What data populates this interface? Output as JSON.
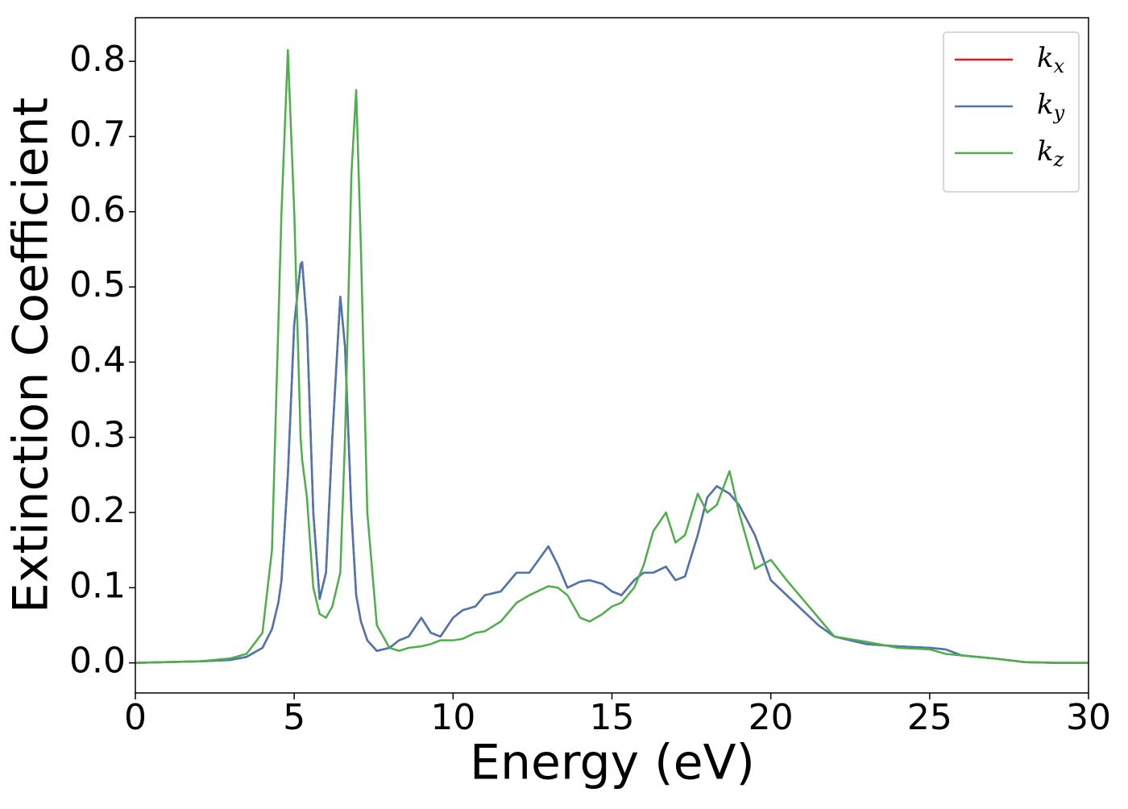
{
  "chart_data": {
    "type": "line",
    "xlabel": "Energy (eV)",
    "ylabel": "Extinction Coefficient",
    "x": [
      0,
      2,
      3,
      3.5,
      4,
      4.3,
      4.5,
      4.6,
      4.8,
      5.0,
      5.2,
      5.25,
      5.4,
      5.6,
      5.8,
      6.0,
      6.2,
      6.45,
      6.6,
      6.8,
      6.95,
      7.1,
      7.3,
      7.6,
      8,
      8.3,
      8.6,
      9,
      9.3,
      9.6,
      10,
      10.3,
      10.7,
      11,
      11.5,
      12,
      12.4,
      13,
      13.3,
      13.6,
      14,
      14.3,
      14.7,
      15,
      15.3,
      15.7,
      16,
      16.3,
      16.7,
      17,
      17.3,
      17.7,
      18,
      18.3,
      18.7,
      19,
      19.5,
      20,
      20.5,
      21,
      21.5,
      22,
      23,
      24,
      25,
      25.5,
      26,
      27,
      28,
      29,
      30
    ],
    "series": [
      {
        "name": "kx",
        "color": "#e41a1c",
        "values": [
          0,
          0.002,
          0.004,
          0.008,
          0.02,
          0.045,
          0.08,
          0.11,
          0.25,
          0.45,
          0.53,
          0.533,
          0.45,
          0.2,
          0.085,
          0.12,
          0.3,
          0.487,
          0.42,
          0.2,
          0.09,
          0.055,
          0.03,
          0.016,
          0.02,
          0.03,
          0.035,
          0.06,
          0.04,
          0.035,
          0.06,
          0.07,
          0.075,
          0.09,
          0.095,
          0.12,
          0.12,
          0.155,
          0.13,
          0.1,
          0.108,
          0.11,
          0.105,
          0.095,
          0.09,
          0.11,
          0.12,
          0.12,
          0.128,
          0.11,
          0.115,
          0.17,
          0.22,
          0.235,
          0.225,
          0.21,
          0.17,
          0.11,
          0.09,
          0.07,
          0.05,
          0.035,
          0.025,
          0.022,
          0.02,
          0.018,
          0.01,
          0.006,
          0.001,
          0,
          0
        ]
      },
      {
        "name": "ky",
        "color": "#4a77b4",
        "values": [
          0,
          0.002,
          0.004,
          0.008,
          0.02,
          0.045,
          0.08,
          0.11,
          0.25,
          0.45,
          0.53,
          0.533,
          0.45,
          0.2,
          0.085,
          0.12,
          0.3,
          0.487,
          0.42,
          0.2,
          0.09,
          0.055,
          0.03,
          0.016,
          0.02,
          0.03,
          0.035,
          0.06,
          0.04,
          0.035,
          0.06,
          0.07,
          0.075,
          0.09,
          0.095,
          0.12,
          0.12,
          0.155,
          0.13,
          0.1,
          0.108,
          0.11,
          0.105,
          0.095,
          0.09,
          0.11,
          0.12,
          0.12,
          0.128,
          0.11,
          0.115,
          0.17,
          0.22,
          0.235,
          0.225,
          0.21,
          0.17,
          0.11,
          0.09,
          0.07,
          0.05,
          0.035,
          0.025,
          0.022,
          0.02,
          0.018,
          0.01,
          0.006,
          0.001,
          0,
          0
        ]
      },
      {
        "name": "kz",
        "color": "#4daf4a",
        "values": [
          0,
          0.002,
          0.006,
          0.012,
          0.04,
          0.15,
          0.45,
          0.6,
          0.815,
          0.6,
          0.3,
          0.27,
          0.22,
          0.1,
          0.065,
          0.06,
          0.075,
          0.12,
          0.3,
          0.65,
          0.762,
          0.55,
          0.2,
          0.05,
          0.02,
          0.016,
          0.02,
          0.022,
          0.025,
          0.03,
          0.03,
          0.032,
          0.04,
          0.042,
          0.055,
          0.08,
          0.09,
          0.102,
          0.1,
          0.09,
          0.06,
          0.055,
          0.065,
          0.075,
          0.08,
          0.1,
          0.13,
          0.175,
          0.2,
          0.16,
          0.17,
          0.225,
          0.2,
          0.21,
          0.255,
          0.2,
          0.125,
          0.137,
          0.11,
          0.085,
          0.06,
          0.035,
          0.028,
          0.02,
          0.018,
          0.012,
          0.01,
          0.006,
          0.001,
          0,
          0
        ]
      }
    ],
    "xlim": [
      0,
      30
    ],
    "xticks": [
      0,
      5,
      10,
      15,
      20,
      25,
      30
    ],
    "ylim": [
      -0.04,
      0.858
    ],
    "yticks": [
      {
        "value": 0,
        "label": "0.0"
      },
      0.1,
      0.2,
      0.3,
      0.4,
      0.5,
      0.6,
      0.7,
      0.8
    ],
    "legend": "upper right"
  }
}
